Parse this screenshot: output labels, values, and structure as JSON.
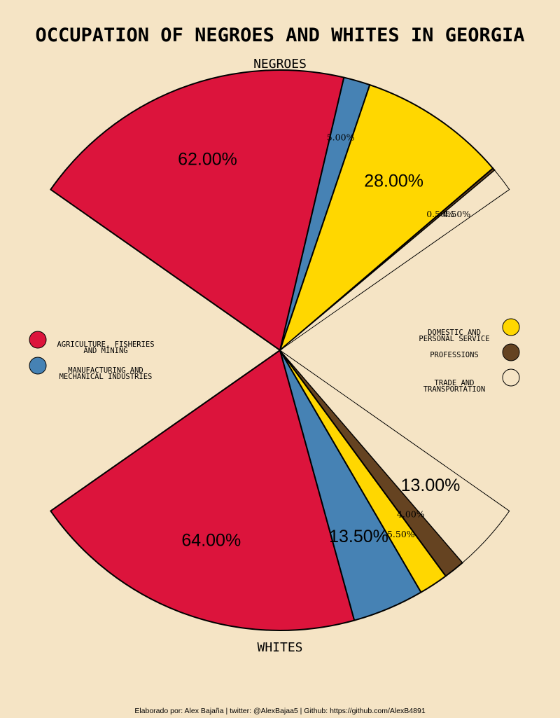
{
  "chart_data": {
    "type": "pie",
    "title": "OCCUPATION OF NEGROES AND WHITES IN GEORGIA",
    "categories": [
      "AGRICULTURE, FISHERIES AND MINING",
      "MANUFACTURING AND MECHANICAL INDUSTRIES",
      "DOMESTIC AND PERSONAL SERVICE",
      "PROFESSIONS",
      "TRADE AND TRANSPORTATION"
    ],
    "legend_lines": [
      [
        "AGRICULTURE, FISHERIES",
        "AND MINING"
      ],
      [
        "MANUFACTURING AND",
        "MECHANICAL INDUSTRIES"
      ],
      [
        "DOMESTIC AND",
        "PERSONAL SERVICE"
      ],
      [
        "PROFESSIONS"
      ],
      [
        "TRADE AND",
        "TRANSPORTATION"
      ]
    ],
    "colors": [
      "#DC143C",
      "#4682B4",
      "#FFD700",
      "#654321",
      "#F5E4C5"
    ],
    "series": [
      {
        "name": "NEGROES",
        "values": [
          62.0,
          5.0,
          28.0,
          0.5,
          4.5
        ],
        "labels": [
          "62.00%",
          "5.00%",
          "28.00%",
          "0.50%",
          "4.50%"
        ]
      },
      {
        "name": "WHITES",
        "values": [
          64.0,
          13.5,
          5.5,
          4.0,
          13.0
        ],
        "labels": [
          "64.00%",
          "13.50%",
          "5.50%",
          "4.00%",
          "13.00%"
        ]
      }
    ],
    "legend_placement": "left and right sides"
  },
  "footer": {
    "credit": "Elaborado por: Alex Bajaña | twitter: @AlexBajaa5 | Github: https://github.com/AlexB4891"
  }
}
